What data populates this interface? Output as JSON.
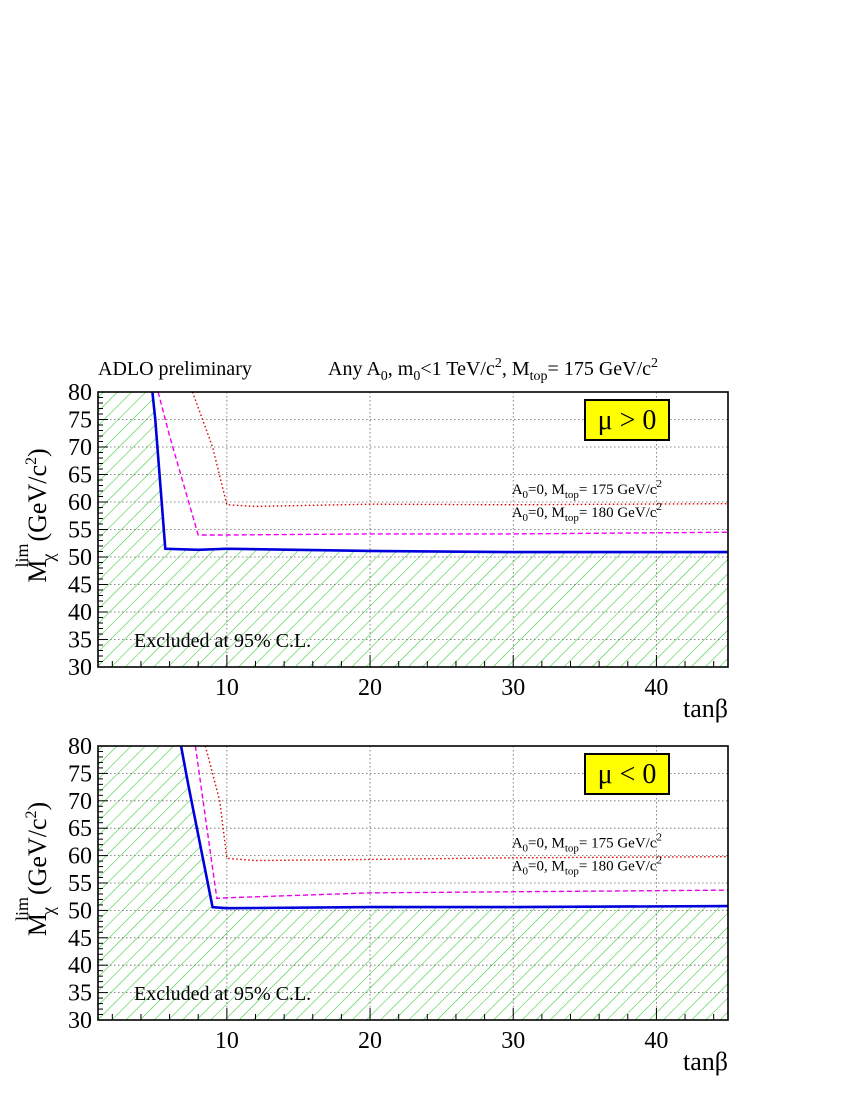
{
  "header": {
    "left": "ADLO preliminary",
    "right": {
      "any": "Any A",
      "sub0": "0",
      "m0": ", m",
      "sub1": "0",
      "tev": "<1 TeV/c",
      "sup1": "2",
      "mtop": ", M",
      "sub2": "top",
      "val": "= 175 GeV/c",
      "sup2": "2"
    }
  },
  "colors": {
    "hatch": "#33cc33",
    "solid": "#0000dd",
    "dotted": "#dd0000",
    "dashed": "#ee00ee",
    "badge_fill": "#ffff00"
  },
  "chart_data": [
    {
      "type": "line",
      "badge": "μ > 0",
      "xlabel": "tanβ",
      "ylabel": {
        "m": "M",
        "sub": "χ",
        "sup": "lim",
        "unit": "(GeV/c",
        "usup": "2",
        "close": ")"
      },
      "xlim": [
        1,
        45
      ],
      "ylim": [
        30,
        80
      ],
      "xticks": [
        10,
        20,
        30,
        40
      ],
      "yticks": [
        30,
        35,
        40,
        45,
        50,
        55,
        60,
        65,
        70,
        75,
        80
      ],
      "grid": true,
      "excluded_label": "Excluded at 95% C.L.",
      "annotations": [
        {
          "a": "A",
          "asub": "0",
          "mid": "=0, M",
          "msub": "top",
          "val": "= 175 GeV/c",
          "vsup": "2",
          "x": 45,
          "y": 61.5
        },
        {
          "a": "A",
          "asub": "0",
          "mid": "=0, M",
          "msub": "top",
          "val": "= 180 GeV/c",
          "vsup": "2",
          "x": 45,
          "y": 57.3
        }
      ],
      "series": [
        {
          "style": "solid",
          "points": [
            [
              4.8,
              80
            ],
            [
              5,
              75
            ],
            [
              5.7,
              51.5
            ],
            [
              8,
              51.3
            ],
            [
              10,
              51.5
            ],
            [
              20,
              51.1
            ],
            [
              30,
              50.9
            ],
            [
              45,
              50.9
            ]
          ]
        },
        {
          "style": "dotted",
          "points": [
            [
              7.6,
              80
            ],
            [
              9,
              70
            ],
            [
              10,
              59.5
            ],
            [
              12,
              59.2
            ],
            [
              20,
              59.6
            ],
            [
              30,
              59.5
            ],
            [
              45,
              59.7
            ]
          ]
        },
        {
          "style": "dashed",
          "points": [
            [
              5.2,
              80
            ],
            [
              6,
              72
            ],
            [
              8,
              54
            ],
            [
              10,
              54
            ],
            [
              20,
              54.2
            ],
            [
              30,
              54.2
            ],
            [
              45,
              54.5
            ]
          ]
        }
      ]
    },
    {
      "type": "line",
      "badge": "μ < 0",
      "xlabel": "tanβ",
      "ylabel": {
        "m": "M",
        "sub": "χ",
        "sup": "lim",
        "unit": "(GeV/c",
        "usup": "2",
        "close": ")"
      },
      "xlim": [
        1,
        45
      ],
      "ylim": [
        30,
        80
      ],
      "xticks": [
        10,
        20,
        30,
        40
      ],
      "yticks": [
        30,
        35,
        40,
        45,
        50,
        55,
        60,
        65,
        70,
        75,
        80
      ],
      "grid": true,
      "excluded_label": "Excluded at 95% C.L.",
      "annotations": [
        {
          "a": "A",
          "asub": "0",
          "mid": "=0, M",
          "msub": "top",
          "val": "= 175 GeV/c",
          "vsup": "2",
          "x": 45,
          "y": 61.5
        },
        {
          "a": "A",
          "asub": "0",
          "mid": "=0, M",
          "msub": "top",
          "val": "= 180 GeV/c",
          "vsup": "2",
          "x": 45,
          "y": 57.3
        }
      ],
      "series": [
        {
          "style": "solid",
          "points": [
            [
              6.8,
              80
            ],
            [
              7.3,
              73
            ],
            [
              9,
              50.6
            ],
            [
              10,
              50.4
            ],
            [
              20,
              50.6
            ],
            [
              30,
              50.6
            ],
            [
              45,
              50.8
            ]
          ]
        },
        {
          "style": "dotted",
          "points": [
            [
              8.5,
              80
            ],
            [
              9.5,
              70
            ],
            [
              10,
              59.5
            ],
            [
              12,
              59.1
            ],
            [
              20,
              59.3
            ],
            [
              30,
              59.6
            ],
            [
              45,
              59.8
            ]
          ]
        },
        {
          "style": "dashed",
          "points": [
            [
              7.8,
              80
            ],
            [
              8.5,
              67
            ],
            [
              9.3,
              52.2
            ],
            [
              10,
              52.3
            ],
            [
              20,
              53.2
            ],
            [
              30,
              53.4
            ],
            [
              45,
              53.7
            ]
          ]
        }
      ]
    }
  ]
}
